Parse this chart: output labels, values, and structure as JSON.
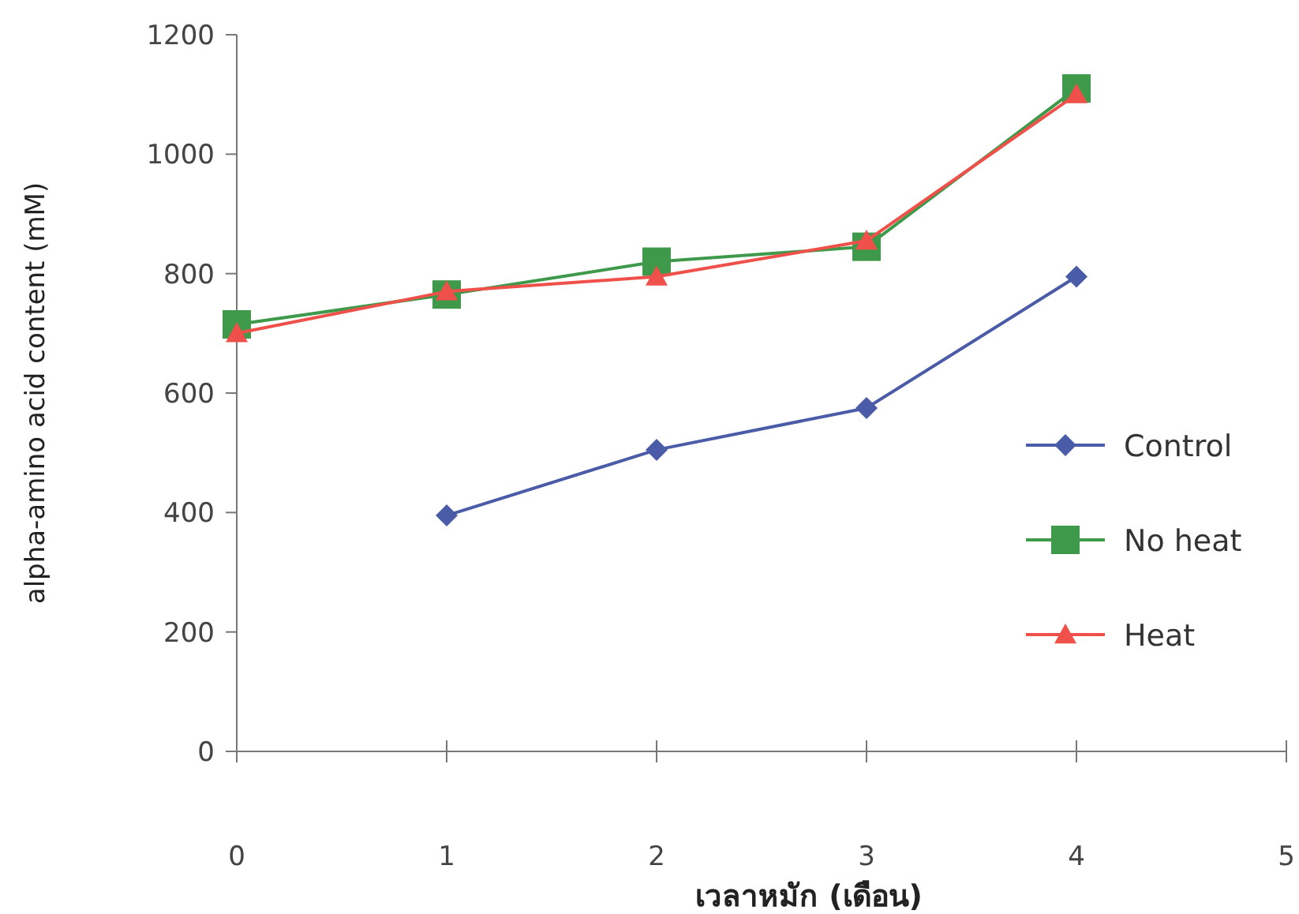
{
  "chart_data": {
    "type": "line",
    "xlabel": "เวลาหมัก (เดือน)",
    "ylabel": "alpha-amino acid content (mM)",
    "x": [
      0,
      1,
      2,
      3,
      4
    ],
    "xlim": [
      0,
      5
    ],
    "xticks": [
      0,
      1,
      2,
      3,
      4,
      5
    ],
    "ylim": [
      0,
      1200
    ],
    "yticks": [
      0,
      200,
      400,
      600,
      800,
      1000,
      1200
    ],
    "grid": false,
    "legend": "right",
    "line_style": "solid",
    "series": [
      {
        "name": "Control",
        "color": "#4a5ca8",
        "marker": "diamond",
        "values": [
          null,
          395,
          505,
          575,
          795
        ]
      },
      {
        "name": "No heat",
        "color": "#3e9a4a",
        "marker": "square",
        "values": [
          715,
          765,
          820,
          845,
          1110
        ]
      },
      {
        "name": "Heat",
        "color": "#f0504a",
        "marker": "triangle",
        "values": [
          700,
          770,
          795,
          855,
          1100
        ]
      }
    ]
  }
}
